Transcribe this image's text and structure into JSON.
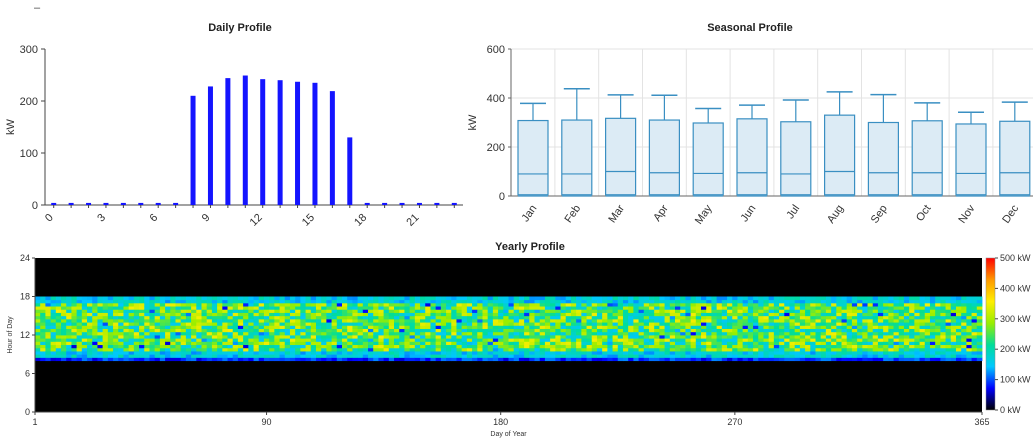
{
  "page_marker": "–",
  "chart_data": [
    {
      "type": "bar",
      "title": "Daily Profile",
      "ylabel": "kW",
      "ylim": [
        0,
        300
      ],
      "yticks": [
        0,
        100,
        200,
        300
      ],
      "categories": [
        0,
        1,
        2,
        3,
        4,
        5,
        6,
        7,
        8,
        9,
        10,
        11,
        12,
        13,
        14,
        15,
        16,
        17,
        18,
        19,
        20,
        21,
        22,
        23
      ],
      "xtick_labels": [
        "0",
        "3",
        "6",
        "9",
        "12",
        "15",
        "18",
        "21"
      ],
      "values": [
        4,
        4,
        4,
        4,
        4,
        4,
        4,
        4,
        210,
        228,
        244,
        249,
        242,
        240,
        237,
        235,
        219,
        130,
        4,
        4,
        4,
        4,
        4,
        4
      ],
      "color": "#1414ff",
      "grid": false
    },
    {
      "type": "box",
      "title": "Seasonal Profile",
      "ylabel": "kW",
      "ylim": [
        0,
        600
      ],
      "yticks": [
        0,
        200,
        400,
        600
      ],
      "categories": [
        "Jan",
        "Feb",
        "Mar",
        "Apr",
        "May",
        "Jun",
        "Jul",
        "Aug",
        "Sep",
        "Oct",
        "Nov",
        "Dec"
      ],
      "boxes": [
        {
          "min": 0,
          "q1": 5,
          "median": 90,
          "q3": 308,
          "max": 378
        },
        {
          "min": 0,
          "q1": 5,
          "median": 90,
          "q3": 310,
          "max": 438
        },
        {
          "min": 0,
          "q1": 5,
          "median": 100,
          "q3": 317,
          "max": 413
        },
        {
          "min": 0,
          "q1": 5,
          "median": 95,
          "q3": 310,
          "max": 411
        },
        {
          "min": 0,
          "q1": 5,
          "median": 92,
          "q3": 298,
          "max": 357
        },
        {
          "min": 0,
          "q1": 5,
          "median": 95,
          "q3": 315,
          "max": 371
        },
        {
          "min": 0,
          "q1": 5,
          "median": 90,
          "q3": 303,
          "max": 392
        },
        {
          "min": 0,
          "q1": 5,
          "median": 100,
          "q3": 330,
          "max": 425
        },
        {
          "min": 0,
          "q1": 5,
          "median": 95,
          "q3": 300,
          "max": 414
        },
        {
          "min": 0,
          "q1": 5,
          "median": 95,
          "q3": 307,
          "max": 380
        },
        {
          "min": 0,
          "q1": 5,
          "median": 92,
          "q3": 294,
          "max": 342
        },
        {
          "min": 0,
          "q1": 5,
          "median": 95,
          "q3": 305,
          "max": 383
        }
      ],
      "box_fill": "#dcebf5",
      "box_stroke": "#3a8fc2",
      "grid": true
    },
    {
      "type": "heatmap",
      "title": "Yearly Profile",
      "xlabel": "Day of Year",
      "ylabel": "Hour of Day",
      "xlim": [
        1,
        365
      ],
      "ylim": [
        0,
        24
      ],
      "xticks": [
        1,
        90,
        180,
        270,
        365
      ],
      "yticks": [
        0,
        6,
        12,
        18,
        24
      ],
      "active_hours": [
        8,
        18
      ],
      "typical_range_kw": [
        150,
        350
      ],
      "colorbar": {
        "ticks": [
          "0 kW",
          "100 kW",
          "200 kW",
          "300 kW",
          "400 kW",
          "500 kW"
        ],
        "min": 0,
        "max": 500,
        "colors": [
          "#000000",
          "#0000ff",
          "#00c8ff",
          "#00dd99",
          "#99ee00",
          "#ffee00",
          "#ff9900",
          "#ff0000"
        ]
      }
    }
  ]
}
